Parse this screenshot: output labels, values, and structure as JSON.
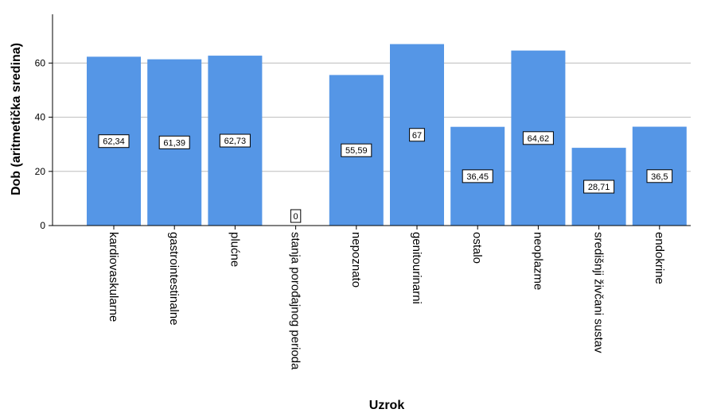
{
  "chart_data": {
    "type": "bar",
    "title": "",
    "xlabel": "Uzrok",
    "ylabel": "Dob (aritmetička sredina)",
    "ylim": [
      0,
      78
    ],
    "yticks": [
      0,
      20,
      40,
      60
    ],
    "grid": true,
    "bar_color": "#5596E6",
    "categories": [
      "kardiovaskularne",
      "gastrointestinalne",
      "plućne",
      "stanja porođajnog perioda",
      "nepoznato",
      "genitourinarni",
      "ostalo",
      "neoplazme",
      "središnji živčani sustav",
      "endokrine"
    ],
    "values": [
      62.34,
      61.39,
      62.73,
      0,
      55.59,
      67,
      36.45,
      64.62,
      28.71,
      36.5
    ],
    "data_labels": [
      "62,34",
      "61,39",
      "62,73",
      "0",
      "55,59",
      "67",
      "36,45",
      "64,62",
      "28,71",
      "36,5"
    ]
  }
}
